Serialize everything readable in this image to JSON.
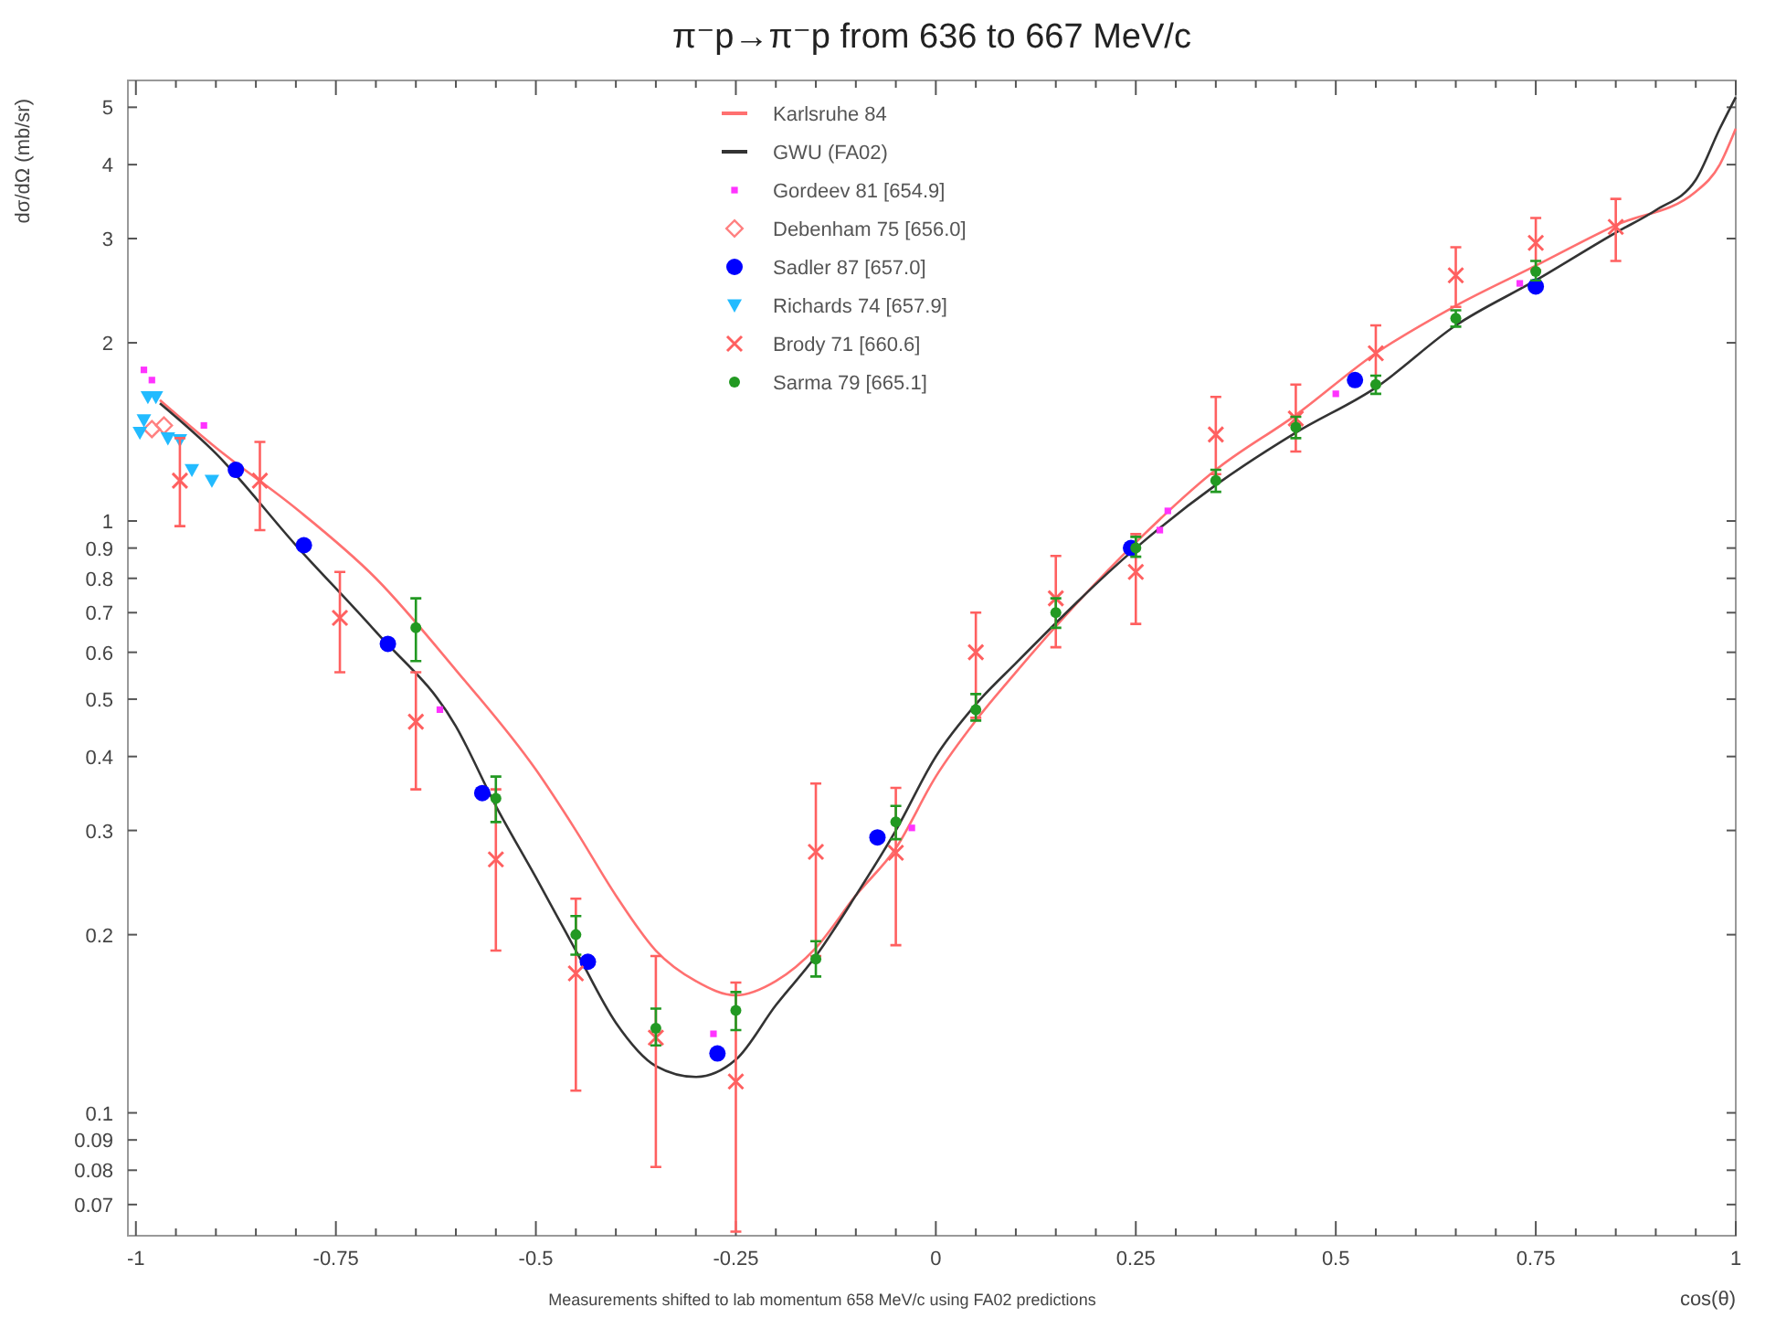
{
  "chart_data": {
    "type": "scatter",
    "title": "π⁻p→π⁻p from 636 to 667 MeV/c",
    "xlabel": "cos(θ)",
    "ylabel": "dσ/dΩ (mb/sr)",
    "annotations": [
      "Measurements shifted to lab momentum 658 MeV/c using FA02 predictions"
    ],
    "log": "y",
    "grid": false,
    "legend": "top",
    "xlim": [
      -1.01,
      1.0
    ],
    "xticks": [
      -1,
      {
        "value": -0.95,
        "label": null
      },
      {
        "value": -0.9,
        "label": null
      },
      {
        "value": -0.85,
        "label": null
      },
      {
        "value": -0.8,
        "label": null
      },
      -0.75,
      {
        "value": -0.7,
        "label": null
      },
      {
        "value": -0.65,
        "label": null
      },
      {
        "value": -0.6,
        "label": null
      },
      {
        "value": -0.55,
        "label": null
      },
      -0.5,
      {
        "value": -0.45,
        "label": null
      },
      {
        "value": -0.4,
        "label": null
      },
      {
        "value": -0.35,
        "label": null
      },
      {
        "value": -0.3,
        "label": null
      },
      -0.25,
      {
        "value": -0.2,
        "label": null
      },
      {
        "value": -0.15,
        "label": null
      },
      {
        "value": -0.1,
        "label": null
      },
      {
        "value": -0.05,
        "label": null
      },
      0,
      {
        "value": 0.05,
        "label": null
      },
      {
        "value": 0.1,
        "label": null
      },
      {
        "value": 0.15,
        "label": null
      },
      {
        "value": 0.2,
        "label": null
      },
      0.25,
      {
        "value": 0.3,
        "label": null
      },
      {
        "value": 0.35,
        "label": null
      },
      {
        "value": 0.4,
        "label": null
      },
      {
        "value": 0.45,
        "label": null
      },
      0.5,
      {
        "value": 0.55,
        "label": null
      },
      {
        "value": 0.6,
        "label": null
      },
      {
        "value": 0.65,
        "label": null
      },
      {
        "value": 0.7,
        "label": null
      },
      0.75,
      {
        "value": 0.8,
        "label": null
      },
      {
        "value": 0.85,
        "label": null
      },
      {
        "value": 0.9,
        "label": null
      },
      {
        "value": 0.95,
        "label": null
      },
      1
    ],
    "ylim": [
      0.062,
      5.55
    ],
    "yticks": [
      0.07,
      0.08,
      0.09,
      0.1,
      0.2,
      0.3,
      0.4,
      0.5,
      0.6,
      0.7,
      0.8,
      0.9,
      1,
      2,
      3,
      4,
      5
    ],
    "series": [
      {
        "name": "Karlsruhe 84",
        "type": "line",
        "color": "#ff7070",
        "x": [
          -0.97,
          -0.9,
          -0.8,
          -0.7,
          -0.6,
          -0.5,
          -0.45,
          -0.4,
          -0.35,
          -0.3,
          -0.25,
          -0.2,
          -0.15,
          -0.1,
          -0.05,
          0,
          0.05,
          0.1,
          0.25,
          0.35,
          0.45,
          0.55,
          0.65,
          0.75,
          0.85,
          0.95,
          0.98,
          1.0
        ],
        "values": [
          1.6,
          1.33,
          1.05,
          0.8,
          0.56,
          0.38,
          0.3,
          0.233,
          0.188,
          0.167,
          0.158,
          0.167,
          0.19,
          0.233,
          0.28,
          0.37,
          0.46,
          0.555,
          0.92,
          1.22,
          1.51,
          1.92,
          2.31,
          2.7,
          3.16,
          3.6,
          4.0,
          4.6
        ]
      },
      {
        "name": "GWU (FA02)",
        "type": "line",
        "color": "#333333",
        "x": [
          -0.97,
          -0.9,
          -0.8,
          -0.7,
          -0.6,
          -0.55,
          -0.5,
          -0.45,
          -0.4,
          -0.35,
          -0.3,
          -0.25,
          -0.2,
          -0.15,
          -0.1,
          -0.05,
          0,
          0.05,
          0.1,
          0.25,
          0.35,
          0.45,
          0.55,
          0.65,
          0.75,
          0.85,
          0.9,
          0.95,
          0.98,
          1.0
        ],
        "values": [
          1.58,
          1.3,
          0.91,
          0.65,
          0.45,
          0.33,
          0.25,
          0.188,
          0.142,
          0.12,
          0.115,
          0.123,
          0.152,
          0.184,
          0.233,
          0.3,
          0.4,
          0.49,
          0.575,
          0.9,
          1.15,
          1.41,
          1.68,
          2.14,
          2.55,
          3.07,
          3.35,
          3.77,
          4.6,
          5.2
        ]
      },
      {
        "name": "Gordeev 81  [654.9]",
        "marker": "square",
        "color": "#ff33ff",
        "x": [
          -0.99,
          -0.98,
          -0.915,
          -0.62,
          -0.278,
          -0.03,
          0.28,
          0.29,
          0.5,
          0.73
        ],
        "values": [
          1.8,
          1.73,
          1.45,
          0.48,
          0.136,
          0.303,
          0.965,
          1.04,
          1.64,
          2.52
        ]
      },
      {
        "name": "Debenham 75  [656.0]",
        "marker": "diamond",
        "color": "#ff8080",
        "x": [
          -0.98,
          -0.965
        ],
        "values": [
          1.43,
          1.45
        ]
      },
      {
        "name": "Sadler 87  [657.0]",
        "marker": "circle",
        "color": "#0000ff",
        "x": [
          -0.875,
          -0.79,
          -0.685,
          -0.567,
          -0.435,
          -0.273,
          -0.073,
          0.244,
          0.524,
          0.75
        ],
        "values": [
          1.22,
          0.91,
          0.62,
          0.347,
          0.18,
          0.126,
          0.292,
          0.9,
          1.73,
          2.49
        ]
      },
      {
        "name": "Richards 74  [657.9]",
        "marker": "triangle",
        "color": "#22bbff",
        "x": [
          -0.995,
          -0.99,
          -0.985,
          -0.975,
          -0.96,
          -0.945,
          -0.93,
          -0.905
        ],
        "values": [
          1.41,
          1.48,
          1.62,
          1.62,
          1.38,
          1.37,
          1.22,
          1.17
        ]
      },
      {
        "name": "Brody 71  [660.6]",
        "marker": "cross",
        "color": "#ff6060",
        "x": [
          -0.945,
          -0.845,
          -0.745,
          -0.65,
          -0.55,
          -0.45,
          -0.35,
          -0.25,
          -0.15,
          -0.05,
          0.05,
          0.15,
          0.25,
          0.35,
          0.45,
          0.55,
          0.65,
          0.75,
          0.85
        ],
        "values": [
          1.17,
          1.17,
          0.686,
          0.458,
          0.268,
          0.172,
          0.134,
          0.113,
          0.276,
          0.275,
          0.6,
          0.74,
          0.82,
          1.4,
          1.49,
          1.92,
          2.6,
          2.95,
          3.14
        ],
        "errors": [
          [
            0.98,
            1.38
          ],
          [
            0.965,
            1.36
          ],
          [
            0.555,
            0.82
          ],
          [
            0.352,
            0.555
          ],
          [
            0.188,
            0.352
          ],
          [
            0.109,
            0.23
          ],
          [
            0.081,
            0.184
          ],
          [
            0.063,
            0.166
          ],
          [
            0.184,
            0.36
          ],
          [
            0.192,
            0.354
          ],
          [
            0.465,
            0.7
          ],
          [
            0.612,
            0.873
          ],
          [
            0.67,
            0.95
          ],
          [
            1.2,
            1.62
          ],
          [
            1.31,
            1.7
          ],
          [
            1.7,
            2.14
          ],
          [
            2.3,
            2.9
          ],
          [
            2.65,
            3.25
          ],
          [
            2.75,
            3.5
          ]
        ]
      },
      {
        "name": "Sarma 79  [665.1]",
        "marker": "circle",
        "color": "#229922",
        "x": [
          -0.65,
          -0.55,
          -0.45,
          -0.35,
          -0.25,
          -0.15,
          -0.05,
          0.05,
          0.15,
          0.25,
          0.35,
          0.45,
          0.55,
          0.65,
          0.75
        ],
        "values": [
          0.66,
          0.34,
          0.2,
          0.139,
          0.149,
          0.182,
          0.31,
          0.48,
          0.7,
          0.9,
          1.17,
          1.44,
          1.7,
          2.2,
          2.64
        ],
        "errors": [
          [
            0.58,
            0.74
          ],
          [
            0.31,
            0.37
          ],
          [
            0.185,
            0.215
          ],
          [
            0.13,
            0.15
          ],
          [
            0.138,
            0.16
          ],
          [
            0.17,
            0.195
          ],
          [
            0.29,
            0.33
          ],
          [
            0.46,
            0.51
          ],
          [
            0.66,
            0.74
          ],
          [
            0.87,
            0.94
          ],
          [
            1.12,
            1.22
          ],
          [
            1.38,
            1.5
          ],
          [
            1.64,
            1.76
          ],
          [
            2.13,
            2.27
          ],
          [
            2.55,
            2.75
          ]
        ]
      }
    ]
  }
}
